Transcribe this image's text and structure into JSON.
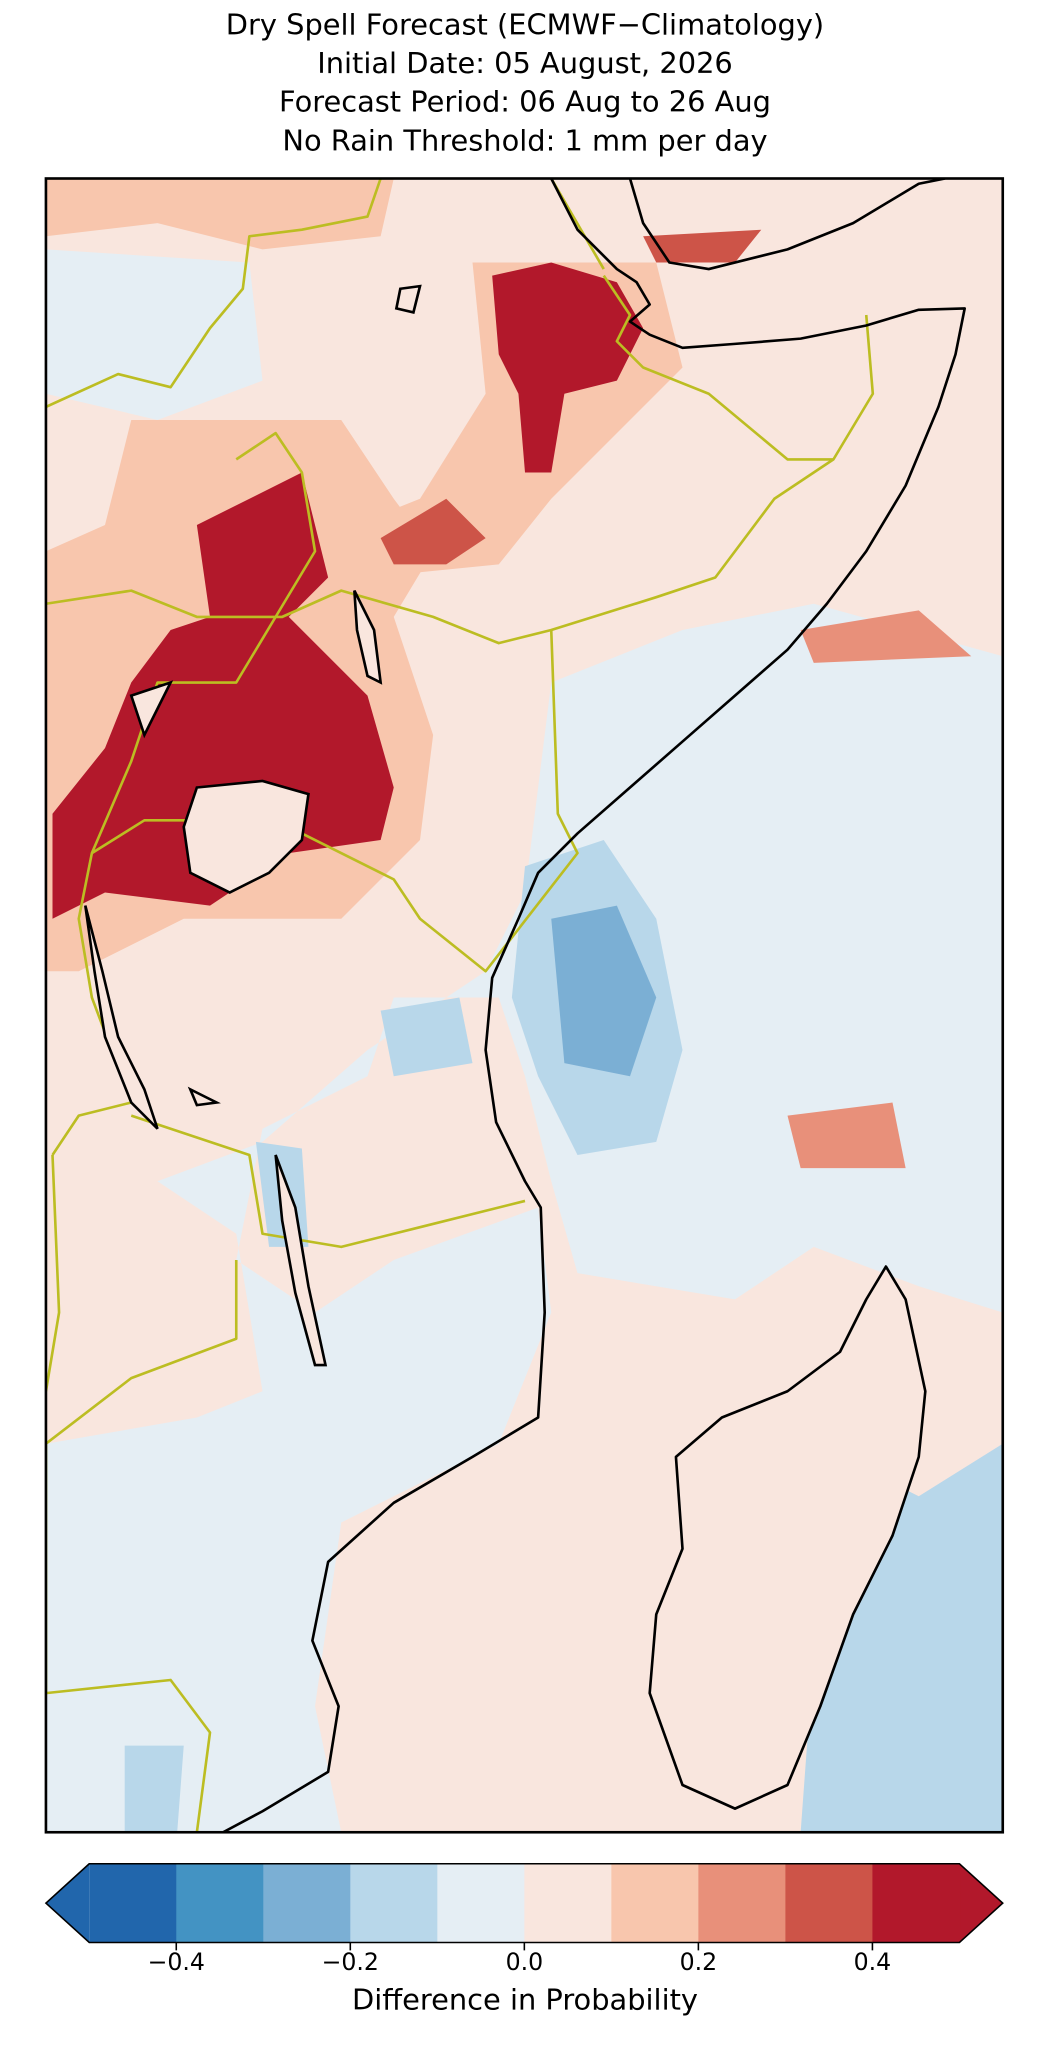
{
  "title_lines": [
    "Dry Spell Forecast (ECMWF−Climatology)",
    "Initial Date: 05 August, 2026",
    "Forecast Period: 06 Aug to 26 Aug",
    "No Rain Threshold: 1 mm per day"
  ],
  "colorbar": {
    "label": "Difference in Probability",
    "levels": [
      -0.5,
      -0.4,
      -0.3,
      -0.2,
      -0.1,
      0,
      0.1,
      0.2,
      0.3,
      0.4,
      0.5
    ],
    "colors": [
      "#2166ac",
      "#4393c3",
      "#7bafd4",
      "#b8d7ea",
      "#e5eef4",
      "#f9e6de",
      "#f8c6ad",
      "#e8907a",
      "#cd5448",
      "#b2182b"
    ],
    "under_color": "#2166ac",
    "over_color": "#b2182b",
    "ticks": [
      {
        "value": -0.4,
        "label": "−0.4"
      },
      {
        "value": -0.2,
        "label": "−0.2"
      },
      {
        "value": 0,
        "label": "0.0"
      },
      0.2,
      0.4
    ]
  }
}
